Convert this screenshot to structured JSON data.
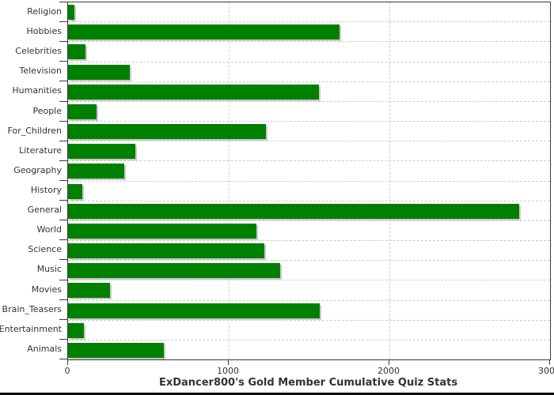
{
  "chart_data": {
    "type": "bar",
    "orientation": "horizontal",
    "title": "ExDancer800's Gold Member Cumulative Quiz Stats",
    "categories": [
      "Religion",
      "Hobbies",
      "Celebrities",
      "Television",
      "Humanities",
      "People",
      "For_Children",
      "Literature",
      "Geography",
      "History",
      "General",
      "World",
      "Science",
      "Music",
      "Movies",
      "Brain_Teasers",
      "Entertainment",
      "Animals"
    ],
    "values": [
      40,
      1690,
      110,
      385,
      1560,
      175,
      1230,
      420,
      350,
      90,
      2810,
      1170,
      1220,
      1320,
      260,
      1565,
      100,
      595
    ],
    "xlabel": "",
    "ylabel": "",
    "xlim": [
      0,
      3000
    ],
    "x_ticks": [
      0,
      1000,
      2000,
      3000
    ],
    "x_tick_labels": [
      "0",
      "1000",
      "2000",
      "3000"
    ],
    "grid": "dashed vertical at 1000-unit intervals, dashed horizontal between category rows",
    "legend_position": "none",
    "colors": {
      "bar": "#008000",
      "bar_shadow": "#c9c9c9",
      "grid": "#cccccc",
      "axis": "#3a3a3a",
      "text": "#333333",
      "background": "#ffffff",
      "bottom_border": "#000000"
    }
  }
}
